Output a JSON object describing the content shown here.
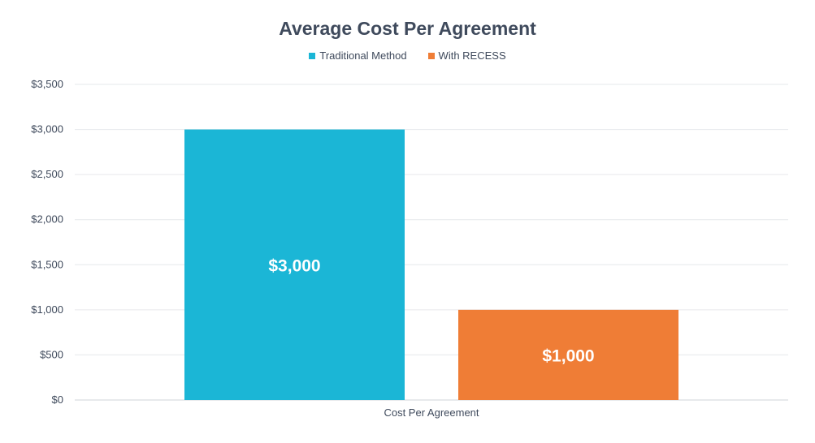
{
  "chart_data": {
    "type": "bar",
    "title": "Average Cost Per Agreement",
    "categories": [
      "Cost Per Agreement"
    ],
    "series": [
      {
        "name": "Traditional Method",
        "values": [
          3000
        ],
        "color": "#1bb6d6",
        "data_label": "$3,000"
      },
      {
        "name": "With RECESS",
        "values": [
          1000
        ],
        "color": "#ef7d36",
        "data_label": "$1,000"
      }
    ],
    "ylim": [
      0,
      3500
    ],
    "yticks": [
      0,
      500,
      1000,
      1500,
      2000,
      2500,
      3000,
      3500
    ],
    "ytick_labels": [
      "$0",
      "$500",
      "$1,000",
      "$1,500",
      "$2,000",
      "$2,500",
      "$3,000",
      "$3,500"
    ],
    "xlabel": "",
    "ylabel": "",
    "grid": true,
    "legend_position": "top"
  }
}
